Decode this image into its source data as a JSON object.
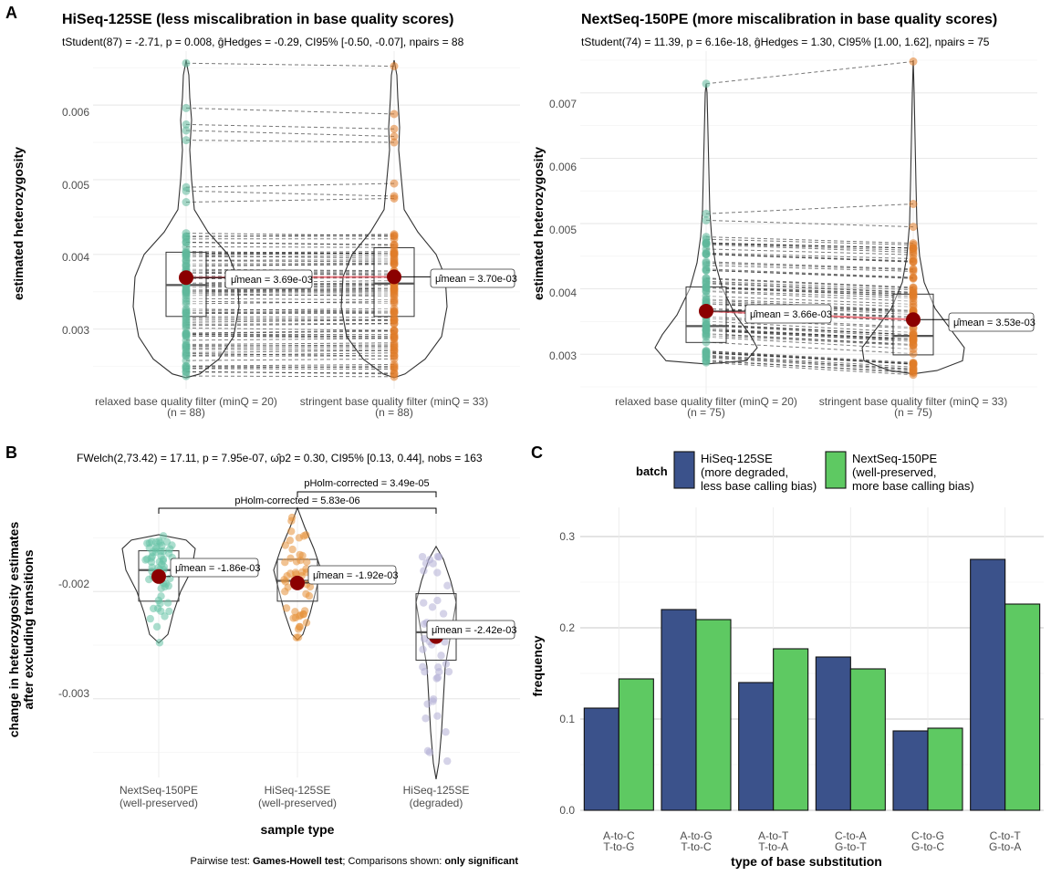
{
  "panel_labels": {
    "a": "A",
    "b": "B",
    "c": "C"
  },
  "panel_a": {
    "title": "HiSeq-125SE (less miscalibration in base quality scores)",
    "stats": "tStudent(87) = -2.71, p = 0.008, ĝHedges = -0.29, CI95% [-0.50, -0.07], npairs = 88",
    "ylabel": "estimated heterozygosity",
    "y_ticks": [
      "0.003",
      "0.004",
      "0.005",
      "0.006"
    ],
    "groups": [
      {
        "label": "relaxed base quality filter (minQ = 20)",
        "n_label": "(n = 88)",
        "mean_label": "μ̂mean = 3.69e-03"
      },
      {
        "label": "stringent base quality filter (minQ = 33)",
        "n_label": "(n = 88)",
        "mean_label": "μ̂mean = 3.70e-03"
      }
    ]
  },
  "panel_a2": {
    "title": "NextSeq-150PE (more miscalibration in base quality scores)",
    "stats": "tStudent(74) = 11.39, p = 6.16e-18, ĝHedges = 1.30, CI95% [1.00, 1.62], npairs = 75",
    "ylabel": "estimated heterozygosity",
    "y_ticks": [
      "0.003",
      "0.004",
      "0.005",
      "0.006",
      "0.007"
    ],
    "groups": [
      {
        "label": "relaxed base quality filter (minQ = 20)",
        "n_label": "(n = 75)",
        "mean_label": "μ̂mean = 3.66e-03"
      },
      {
        "label": "stringent base quality filter (minQ = 33)",
        "n_label": "(n = 75)",
        "mean_label": "μ̂mean = 3.53e-03"
      }
    ]
  },
  "panel_b": {
    "stats": "FWelch(2,73.42) = 17.11, p = 7.95e-07, ω̂p2 = 0.30, CI95% [0.13, 0.44], nobs = 163",
    "ylabel_line1": "change in heterozygosity estimates",
    "ylabel_line2": "after excluding transitions",
    "xlabel": "sample type",
    "y_ticks": [
      "-0.003",
      "-0.002"
    ],
    "groups": [
      {
        "label": "NextSeq-150PE",
        "sub": "(well-preserved)",
        "mean_label": "μ̂mean = -1.86e-03"
      },
      {
        "label": "HiSeq-125SE",
        "sub": "(well-preserved)",
        "mean_label": "μ̂mean = -1.92e-03"
      },
      {
        "label": "HiSeq-125SE",
        "sub": "(degraded)",
        "mean_label": "μ̂mean = -2.42e-03"
      }
    ],
    "pair1": "pHolm-corrected = 3.49e-05",
    "pair2": "pHolm-corrected = 5.83e-06",
    "caption_a": "Pairwise test: ",
    "caption_b": "Games-Howell test",
    "caption_c": "; Comparisons shown: ",
    "caption_d": "only significant"
  },
  "chart_data": [
    {
      "type": "scatter",
      "title": "HiSeq-125SE (less miscalibration in base quality scores)",
      "ylabel": "estimated heterozygosity",
      "categories": [
        "relaxed base quality filter (minQ = 20)",
        "stringent base quality filter (minQ = 33)"
      ],
      "means": [
        0.00369,
        0.0037
      ],
      "ylim": [
        0.0023,
        0.0066
      ]
    },
    {
      "type": "scatter",
      "title": "NextSeq-150PE (more miscalibration in base quality scores)",
      "ylabel": "estimated heterozygosity",
      "categories": [
        "relaxed base quality filter (minQ = 20)",
        "stringent base quality filter (minQ = 33)"
      ],
      "means": [
        0.00366,
        0.00353
      ],
      "ylim": [
        0.0025,
        0.0075
      ]
    },
    {
      "type": "scatter",
      "xlabel": "sample type",
      "ylabel": "change in heterozygosity estimates after excluding transitions",
      "categories": [
        "NextSeq-150PE (well-preserved)",
        "HiSeq-125SE (well-preserved)",
        "HiSeq-125SE (degraded)"
      ],
      "means": [
        -0.00186,
        -0.00192,
        -0.00242
      ],
      "ylim": [
        -0.0037,
        -0.0013
      ],
      "colors": [
        "#66c2a5",
        "#e6913a",
        "#b3aed6"
      ]
    },
    {
      "type": "bar",
      "xlabel": "type of base substitution",
      "ylabel": "frequency",
      "legend_title": "batch",
      "legend_position": "top",
      "categories": [
        "A-to-C\nT-to-G",
        "A-to-G\nT-to-C",
        "A-to-T\nT-to-A",
        "C-to-A\nG-to-T",
        "C-to-G\nG-to-C",
        "C-to-T\nG-to-A"
      ],
      "ylim": [
        0,
        0.33
      ],
      "y_ticks": [
        "0.0",
        "0.1",
        "0.2",
        "0.3"
      ],
      "series": [
        {
          "name": "HiSeq-125SE (more degraded, less base calling bias)",
          "legend_lines": [
            "HiSeq-125SE",
            "(more degraded,",
            "less base calling bias)"
          ],
          "color": "#3b528b",
          "values": [
            0.112,
            0.22,
            0.14,
            0.168,
            0.087,
            0.275
          ]
        },
        {
          "name": "NextSeq-150PE (well-preserved, more base calling bias)",
          "legend_lines": [
            "NextSeq-150PE",
            "(well-preserved,",
            "more base calling bias)"
          ],
          "color": "#5ec962",
          "values": [
            0.144,
            0.209,
            0.177,
            0.155,
            0.09,
            0.226
          ]
        }
      ]
    }
  ]
}
